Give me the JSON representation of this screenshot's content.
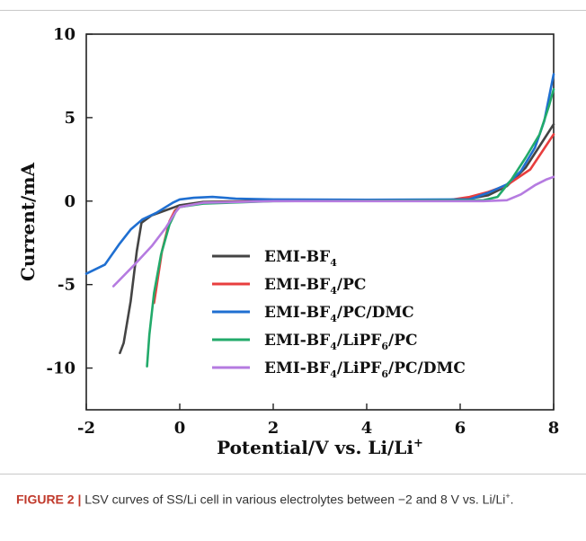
{
  "chart_data": {
    "type": "line",
    "xlabel": "Potential/V vs. Li/Li",
    "xlabel_sup": "+",
    "ylabel": "Current/mA",
    "xlim": [
      -2,
      8
    ],
    "ylim": [
      -12.5,
      10
    ],
    "xticks": [
      -2,
      0,
      2,
      4,
      6,
      8
    ],
    "yticks": [
      10,
      5,
      0,
      -5,
      -10
    ],
    "legend_placement": "lower-right",
    "series": [
      {
        "name": "EMI-BF4",
        "name_base": "EMI-BF",
        "name_sub": "4",
        "name_rest": "",
        "sub2": "",
        "rest2": "",
        "color": "#444444",
        "points": [
          [
            -1.28,
            -9.1
          ],
          [
            -1.2,
            -8.5
          ],
          [
            -1.05,
            -6.0
          ],
          [
            -0.92,
            -3.0
          ],
          [
            -0.82,
            -1.3
          ],
          [
            -0.6,
            -0.85
          ],
          [
            -0.3,
            -0.55
          ],
          [
            -0.1,
            -0.35
          ],
          [
            0,
            -0.25
          ],
          [
            0.5,
            -0.05
          ],
          [
            2,
            0.02
          ],
          [
            4,
            0.02
          ],
          [
            6,
            0.05
          ],
          [
            6.6,
            0.35
          ],
          [
            7,
            0.9
          ],
          [
            7.4,
            2.0
          ],
          [
            7.7,
            3.3
          ],
          [
            8,
            4.6
          ]
        ]
      },
      {
        "name": "EMI-BF4/PC",
        "name_base": "EMI-BF",
        "name_sub": "4",
        "name_rest": "/PC",
        "sub2": "",
        "rest2": "",
        "color": "#e83e3e",
        "points": [
          [
            -0.55,
            -6.1
          ],
          [
            -0.5,
            -5.2
          ],
          [
            -0.38,
            -3.0
          ],
          [
            -0.22,
            -1.2
          ],
          [
            -0.1,
            -0.55
          ],
          [
            0,
            -0.35
          ],
          [
            0.5,
            -0.1
          ],
          [
            2,
            0.02
          ],
          [
            4,
            0.05
          ],
          [
            5.8,
            0.08
          ],
          [
            6.2,
            0.25
          ],
          [
            6.6,
            0.55
          ],
          [
            7,
            0.95
          ],
          [
            7.5,
            1.9
          ],
          [
            8,
            4.0
          ]
        ]
      },
      {
        "name": "EMI-BF4/PC/DMC",
        "name_base": "EMI-BF",
        "name_sub": "4",
        "name_rest": "/PC/DMC",
        "sub2": "",
        "rest2": "",
        "color": "#1f6fd1",
        "points": [
          [
            -2,
            -4.35
          ],
          [
            -1.6,
            -3.8
          ],
          [
            -1.3,
            -2.6
          ],
          [
            -1.05,
            -1.7
          ],
          [
            -0.8,
            -1.1
          ],
          [
            -0.5,
            -0.7
          ],
          [
            -0.15,
            -0.1
          ],
          [
            0,
            0.1
          ],
          [
            0.3,
            0.2
          ],
          [
            0.7,
            0.25
          ],
          [
            1.2,
            0.15
          ],
          [
            2,
            0.1
          ],
          [
            4,
            0.08
          ],
          [
            6.2,
            0.1
          ],
          [
            6.6,
            0.5
          ],
          [
            7,
            1.0
          ],
          [
            7.3,
            1.8
          ],
          [
            7.6,
            3.2
          ],
          [
            7.8,
            4.8
          ],
          [
            8,
            7.6
          ]
        ]
      },
      {
        "name": "EMI-BF4/LiPF6/PC",
        "name_base": "EMI-BF",
        "name_sub": "4",
        "name_rest": "/LiPF",
        "sub2": "6",
        "rest2": "/PC",
        "color": "#22aa6a",
        "points": [
          [
            -0.7,
            -9.9
          ],
          [
            -0.65,
            -8.0
          ],
          [
            -0.55,
            -5.5
          ],
          [
            -0.4,
            -3.2
          ],
          [
            -0.22,
            -1.4
          ],
          [
            -0.08,
            -0.6
          ],
          [
            0,
            -0.35
          ],
          [
            0.5,
            -0.15
          ],
          [
            2,
            0.0
          ],
          [
            4,
            0.02
          ],
          [
            6.5,
            0.05
          ],
          [
            6.8,
            0.25
          ],
          [
            7.1,
            1.3
          ],
          [
            7.4,
            2.6
          ],
          [
            7.7,
            4.0
          ],
          [
            7.9,
            5.7
          ],
          [
            8,
            6.7
          ]
        ]
      },
      {
        "name": "EMI-BF4/LiPF6/PC/DMC",
        "name_base": "EMI-BF",
        "name_sub": "4",
        "name_rest": "/LiPF",
        "sub2": "6",
        "rest2": "/PC/DMC",
        "color": "#b57be0",
        "points": [
          [
            -1.42,
            -5.1
          ],
          [
            -1.0,
            -3.9
          ],
          [
            -0.6,
            -2.7
          ],
          [
            -0.3,
            -1.6
          ],
          [
            -0.1,
            -0.7
          ],
          [
            0,
            -0.35
          ],
          [
            0.5,
            -0.1
          ],
          [
            2,
            0.0
          ],
          [
            4,
            0.0
          ],
          [
            6.5,
            0.0
          ],
          [
            7,
            0.05
          ],
          [
            7.3,
            0.4
          ],
          [
            7.6,
            0.95
          ],
          [
            7.85,
            1.3
          ],
          [
            8,
            1.45
          ]
        ]
      }
    ]
  },
  "caption": {
    "label": "FIGURE 2 |",
    "text_before": " LSV curves of SS/Li cell in various electrolytes between −2 and 8 V vs. Li/Li",
    "sup": "+",
    "text_after": "."
  }
}
